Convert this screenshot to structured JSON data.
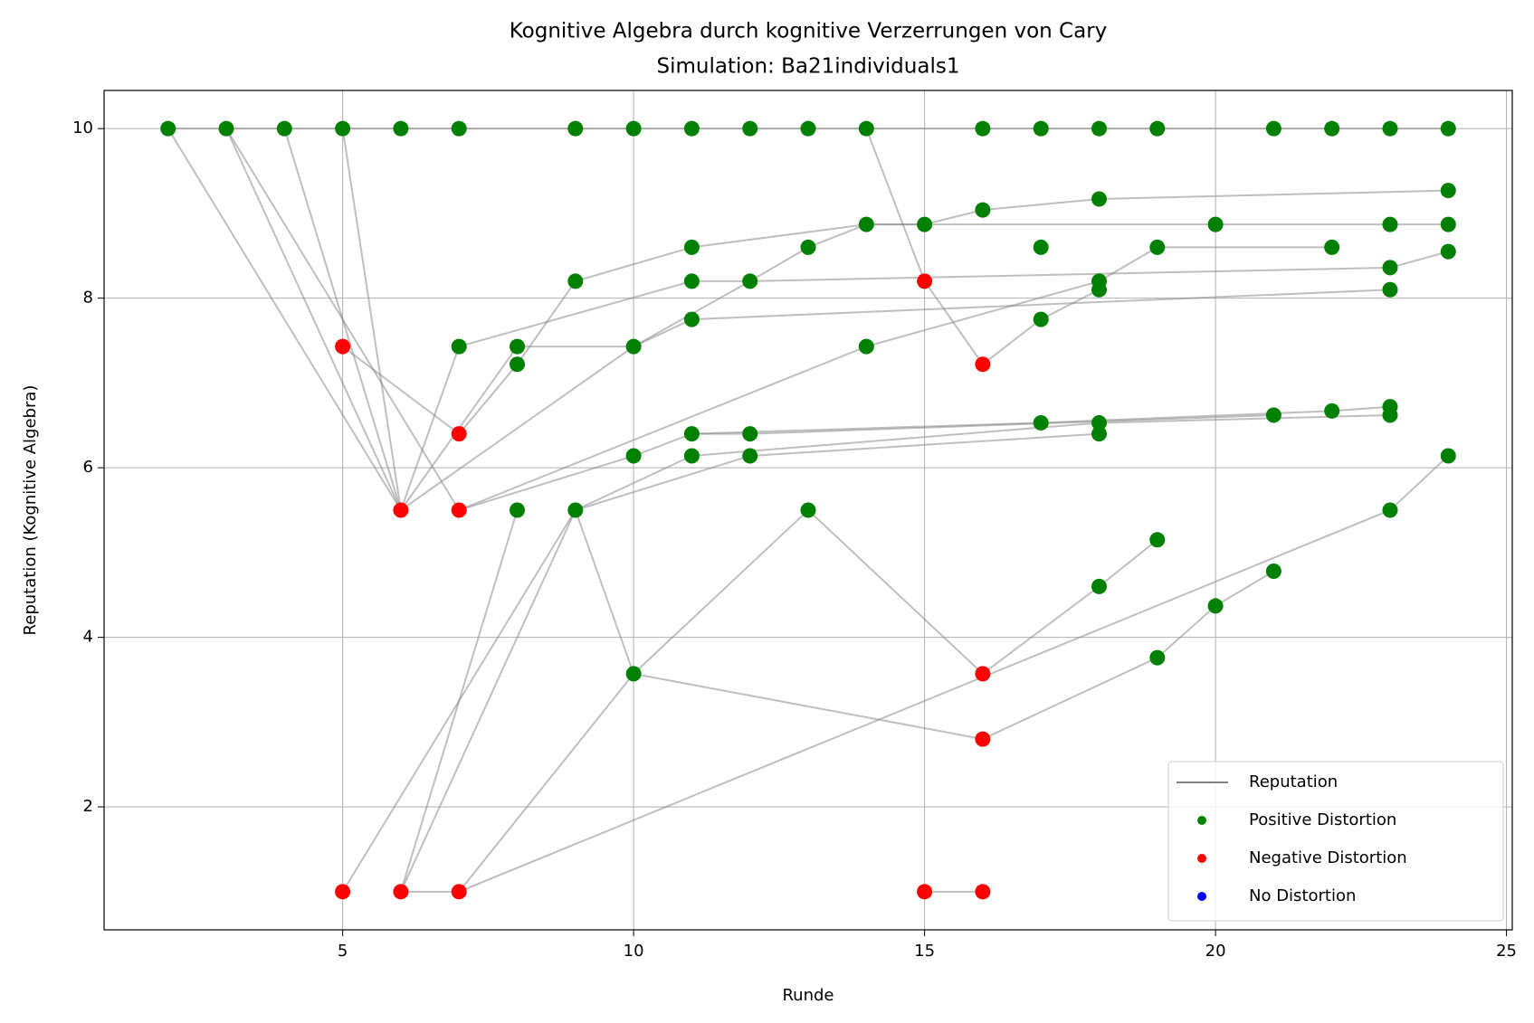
{
  "chart_data": {
    "type": "scatter",
    "title": "Kognitive Algebra durch kognitive Verzerrungen von Cary",
    "subtitle": "Simulation: Ba21individuals1",
    "x_label": "Runde",
    "y_label": "Reputation (Kognitive Algebra)",
    "xlim": [
      0.9,
      25.1
    ],
    "ylim": [
      0.55,
      10.45
    ],
    "xticks": [
      5,
      10,
      15,
      20,
      25
    ],
    "yticks": [
      2,
      4,
      6,
      8,
      10
    ],
    "grid": true,
    "legend": "lower right",
    "series": [
      {
        "name": "Reputation",
        "color": "#808080",
        "paths": [
          {
            "x": [
              2,
              24
            ],
            "y": [
              10,
              10
            ]
          },
          {
            "x": [
              2,
              6
            ],
            "y": [
              10,
              5.5
            ]
          },
          {
            "x": [
              3,
              7
            ],
            "y": [
              10,
              5.5
            ]
          },
          {
            "x": [
              3,
              6
            ],
            "y": [
              10,
              5.5
            ]
          },
          {
            "x": [
              4,
              6
            ],
            "y": [
              10,
              5.5
            ]
          },
          {
            "x": [
              5,
              6
            ],
            "y": [
              10,
              5.5
            ]
          },
          {
            "x": [
              5,
              7,
              8,
              9,
              11,
              14,
              15,
              16,
              18,
              24
            ],
            "y": [
              7.43,
              6.4,
              7.22,
              8.2,
              8.6,
              8.87,
              8.87,
              9.04,
              9.17,
              9.27
            ]
          },
          {
            "x": [
              6,
              7,
              11,
              12,
              23,
              24
            ],
            "y": [
              5.5,
              7.43,
              8.2,
              8.2,
              8.36,
              8.55
            ]
          },
          {
            "x": [
              6,
              8,
              10,
              11,
              23
            ],
            "y": [
              5.5,
              7.43,
              7.43,
              7.75,
              8.1
            ]
          },
          {
            "x": [
              6,
              10,
              12,
              13,
              14,
              20,
              23,
              24
            ],
            "y": [
              5.5,
              7.43,
              8.2,
              8.6,
              8.87,
              8.87,
              8.87,
              8.87
            ]
          },
          {
            "x": [
              7,
              14,
              18,
              19,
              22
            ],
            "y": [
              5.5,
              7.43,
              8.2,
              8.6,
              8.6
            ]
          },
          {
            "x": [
              7,
              10,
              11,
              17,
              22,
              23
            ],
            "y": [
              5.5,
              6.14,
              6.4,
              6.53,
              6.67,
              6.72
            ]
          },
          {
            "x": [
              6,
              8
            ],
            "y": [
              1,
              5.5
            ]
          },
          {
            "x": [
              9,
              11,
              18,
              23
            ],
            "y": [
              5.5,
              6.14,
              6.53,
              6.62
            ]
          },
          {
            "x": [
              6,
              7,
              23,
              24
            ],
            "y": [
              1,
              1,
              5.5,
              6.14
            ]
          },
          {
            "x": [
              5,
              9,
              12,
              18
            ],
            "y": [
              1,
              5.5,
              6.14,
              6.4
            ]
          },
          {
            "x": [
              6,
              9,
              10,
              13,
              16,
              18,
              19
            ],
            "y": [
              1,
              5.5,
              3.57,
              5.5,
              3.57,
              4.6,
              5.15
            ]
          },
          {
            "x": [
              7,
              10,
              16,
              19,
              20,
              21
            ],
            "y": [
              1,
              3.57,
              2.8,
              3.76,
              4.37,
              4.78
            ]
          },
          {
            "x": [
              14,
              15,
              16,
              17,
              18
            ],
            "y": [
              10,
              8.2,
              7.22,
              7.75,
              8.1
            ]
          },
          {
            "x": [
              15,
              16
            ],
            "y": [
              1,
              1
            ]
          },
          {
            "x": [
              11,
              12,
              21
            ],
            "y": [
              6.4,
              6.4,
              6.62
            ]
          }
        ]
      },
      {
        "name": "Positive Distortion",
        "color": "#008000",
        "x": [
          2,
          3,
          4,
          5,
          6,
          7,
          9,
          10,
          11,
          12,
          13,
          14,
          16,
          17,
          18,
          19,
          21,
          22,
          23,
          24,
          24,
          18,
          16,
          14,
          15,
          20,
          23,
          24,
          11,
          13,
          17,
          19,
          22,
          24,
          23,
          9,
          11,
          12,
          18,
          18,
          23,
          11,
          17,
          7,
          8,
          10,
          14,
          8,
          17,
          18,
          23,
          22,
          21,
          23,
          11,
          12,
          18,
          10,
          11,
          12,
          24,
          8,
          9,
          13,
          23,
          19,
          21,
          18,
          20,
          19,
          10
        ],
        "y": [
          10,
          10,
          10,
          10,
          10,
          10,
          10,
          10,
          10,
          10,
          10,
          10,
          10,
          10,
          10,
          10,
          10,
          10,
          10,
          10,
          9.27,
          9.17,
          9.04,
          8.87,
          8.87,
          8.87,
          8.87,
          8.87,
          8.6,
          8.6,
          8.6,
          8.6,
          8.6,
          8.55,
          8.36,
          8.2,
          8.2,
          8.2,
          8.2,
          8.1,
          8.1,
          7.75,
          7.75,
          7.43,
          7.43,
          7.43,
          7.43,
          7.22,
          6.53,
          6.53,
          6.72,
          6.67,
          6.62,
          6.62,
          6.4,
          6.4,
          6.4,
          6.14,
          6.14,
          6.14,
          6.14,
          5.5,
          5.5,
          5.5,
          5.5,
          5.15,
          4.78,
          4.6,
          4.37,
          3.76,
          3.57
        ]
      },
      {
        "name": "Negative Distortion",
        "color": "#ff0000",
        "x": [
          5,
          7,
          6,
          7,
          15,
          16,
          16,
          16,
          5,
          6,
          7,
          15,
          16
        ],
        "y": [
          7.43,
          6.4,
          5.5,
          5.5,
          8.2,
          7.22,
          3.57,
          2.8,
          1,
          1,
          1,
          1,
          1
        ]
      },
      {
        "name": "No Distortion",
        "color": "#0000ff",
        "x": [],
        "y": []
      }
    ]
  }
}
